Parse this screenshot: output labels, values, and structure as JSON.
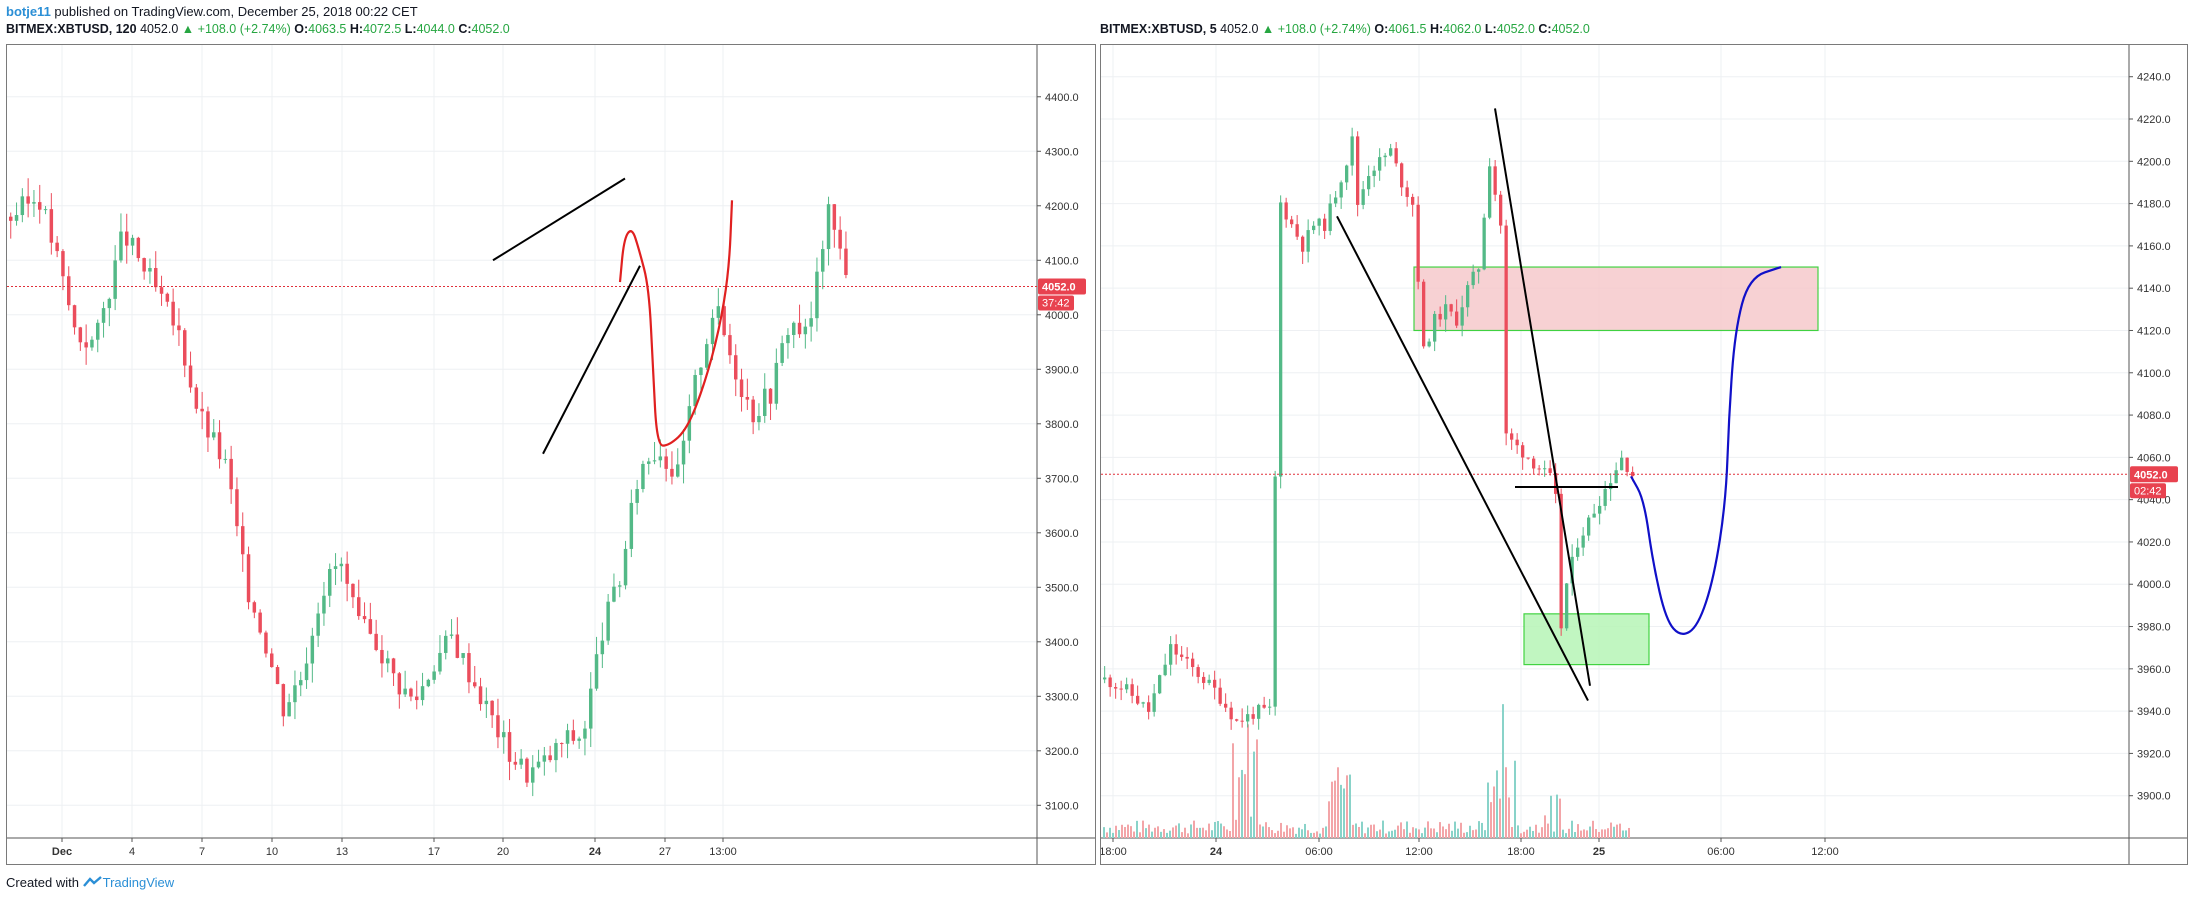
{
  "header": {
    "user": "botje11",
    "published_text": " published on TradingView.com, December 25, 2018 00:22 CET"
  },
  "footer": {
    "created_with": "Created with",
    "brand": "TradingView"
  },
  "colors": {
    "up": "#53b987",
    "down": "#eb4d5c",
    "price_line": "#e0303a",
    "annot_red": "#e02020",
    "annot_blue": "#1010c8",
    "zone_green_border": "#22cc22",
    "zone_green_fill": "#b7f5b7",
    "zone_red_fill": "#f6c9cc"
  },
  "left_chart": {
    "symbol": "BITMEX:XBTUSD, 120",
    "last": "4052.0",
    "change": "▲ +108.0 (+2.74%)",
    "o_label": "O:",
    "o": "4063.5",
    "h_label": "H:",
    "h": "4072.5",
    "l_label": "L:",
    "l": "4044.0",
    "c_label": "C:",
    "c": "4052.0",
    "price_badge": "4052.0",
    "countdown_badge": "37:42",
    "y_ticks": [
      "4400.0",
      "4300.0",
      "4200.0",
      "4100.0",
      "4000.0",
      "3900.0",
      "3800.0",
      "3700.0",
      "3600.0",
      "3500.0",
      "3400.0",
      "3300.0",
      "3200.0",
      "3100.0"
    ],
    "x_ticks": [
      "Dec",
      "4",
      "7",
      "10",
      "13",
      "17",
      "20",
      "24",
      "27",
      "13:00"
    ]
  },
  "right_chart": {
    "symbol": "BITMEX:XBTUSD, 5",
    "last": "4052.0",
    "change": "▲ +108.0 (+2.74%)",
    "o_label": "O:",
    "o": "4061.5",
    "h_label": "H:",
    "h": "4062.0",
    "l_label": "L:",
    "l": "4052.0",
    "c_label": "C:",
    "c": "4052.0",
    "price_badge": "4052.0",
    "countdown_badge": "02:42",
    "y_ticks": [
      "4240.0",
      "4220.0",
      "4200.0",
      "4180.0",
      "4160.0",
      "4140.0",
      "4120.0",
      "4100.0",
      "4080.0",
      "4060.0",
      "4040.0",
      "4020.0",
      "4000.0",
      "3980.0",
      "3960.0",
      "3940.0",
      "3920.0",
      "3900.0"
    ],
    "x_ticks": [
      "18:00",
      "24",
      "06:00",
      "12:00",
      "18:00",
      "25",
      "06:00",
      "12:00"
    ]
  },
  "chart_data": [
    {
      "type": "candlestick",
      "title": "BITMEX:XBTUSD, 120",
      "ylim": [
        3040,
        4495
      ],
      "last_price": 4052.0,
      "x_ticks": [
        "Dec",
        "4",
        "7",
        "10",
        "13",
        "17",
        "20",
        "24",
        "27",
        "13:00"
      ],
      "series": [
        {
          "name": "XBTUSD",
          "close_path_approx": [
            [
              0,
              4180
            ],
            [
              6,
              4220
            ],
            [
              10,
              4100
            ],
            [
              14,
              3960
            ],
            [
              18,
              3950
            ],
            [
              24,
              4150
            ],
            [
              30,
              4060
            ],
            [
              36,
              3960
            ],
            [
              40,
              3820
            ],
            [
              46,
              3720
            ],
            [
              50,
              3510
            ],
            [
              54,
              3410
            ],
            [
              58,
              3280
            ],
            [
              62,
              3340
            ],
            [
              66,
              3490
            ],
            [
              70,
              3550
            ],
            [
              74,
              3430
            ],
            [
              78,
              3400
            ],
            [
              82,
              3330
            ],
            [
              86,
              3290
            ],
            [
              90,
              3360
            ],
            [
              94,
              3410
            ],
            [
              98,
              3340
            ],
            [
              102,
              3270
            ],
            [
              106,
              3200
            ],
            [
              110,
              3160
            ],
            [
              114,
              3180
            ],
            [
              118,
              3220
            ],
            [
              122,
              3230
            ],
            [
              126,
              3420
            ],
            [
              130,
              3520
            ],
            [
              134,
              3720
            ],
            [
              138,
              3760
            ],
            [
              142,
              3700
            ],
            [
              146,
              3880
            ],
            [
              150,
              4020
            ],
            [
              154,
              3910
            ],
            [
              158,
              3820
            ],
            [
              162,
              3860
            ],
            [
              166,
              3990
            ],
            [
              170,
              3960
            ],
            [
              174,
              4190
            ],
            [
              178,
              4090
            ]
          ]
        }
      ],
      "annotations": {
        "wedge_upper": [
          [
            3.0,
            4100
          ],
          [
            3.25,
            4250
          ]
        ],
        "wedge_lower": [
          [
            3.0,
            3745
          ],
          [
            3.25,
            4090
          ]
        ],
        "projection_color": "red"
      }
    },
    {
      "type": "candlestick",
      "title": "BITMEX:XBTUSD, 5",
      "ylim": [
        3880,
        4255
      ],
      "last_price": 4052.0,
      "x_ticks": [
        "18:00",
        "24",
        "06:00",
        "12:00",
        "18:00",
        "25",
        "06:00",
        "12:00"
      ],
      "series": [
        {
          "name": "XBTUSD",
          "close_path_approx": [
            [
              0,
              3955
            ],
            [
              4,
              3950
            ],
            [
              8,
              3940
            ],
            [
              12,
              3970
            ],
            [
              16,
              3960
            ],
            [
              20,
              3950
            ],
            [
              24,
              3935
            ],
            [
              28,
              3940
            ],
            [
              30,
              3940
            ],
            [
              31,
              4050
            ],
            [
              32,
              4180
            ],
            [
              34,
              4170
            ],
            [
              36,
              4160
            ],
            [
              38,
              4170
            ],
            [
              40,
              4170
            ],
            [
              42,
              4185
            ],
            [
              44,
              4200
            ],
            [
              45,
              4210
            ],
            [
              46,
              4180
            ],
            [
              48,
              4195
            ],
            [
              50,
              4200
            ],
            [
              52,
              4205
            ],
            [
              54,
              4190
            ],
            [
              56,
              4180
            ],
            [
              58,
              4110
            ],
            [
              60,
              4125
            ],
            [
              62,
              4130
            ],
            [
              64,
              4125
            ],
            [
              66,
              4140
            ],
            [
              68,
              4150
            ],
            [
              70,
              4200
            ],
            [
              72,
              4170
            ],
            [
              73,
              4070
            ],
            [
              75,
              4065
            ],
            [
              77,
              4060
            ],
            [
              79,
              4055
            ],
            [
              81,
              4050
            ],
            [
              82,
              4040
            ],
            [
              83,
              3980
            ],
            [
              84,
              4000
            ],
            [
              86,
              4020
            ],
            [
              88,
              4030
            ],
            [
              90,
              4040
            ],
            [
              92,
              4050
            ],
            [
              94,
              4060
            ],
            [
              96,
              4052
            ]
          ]
        }
      ],
      "zones": [
        {
          "label": "",
          "type": "supply",
          "from": 4120,
          "to": 4150
        },
        {
          "label": "",
          "type": "demand",
          "from": 3962,
          "to": 3986
        }
      ],
      "annotations": {
        "support_line": 4046,
        "projection_color": "blue"
      }
    }
  ]
}
